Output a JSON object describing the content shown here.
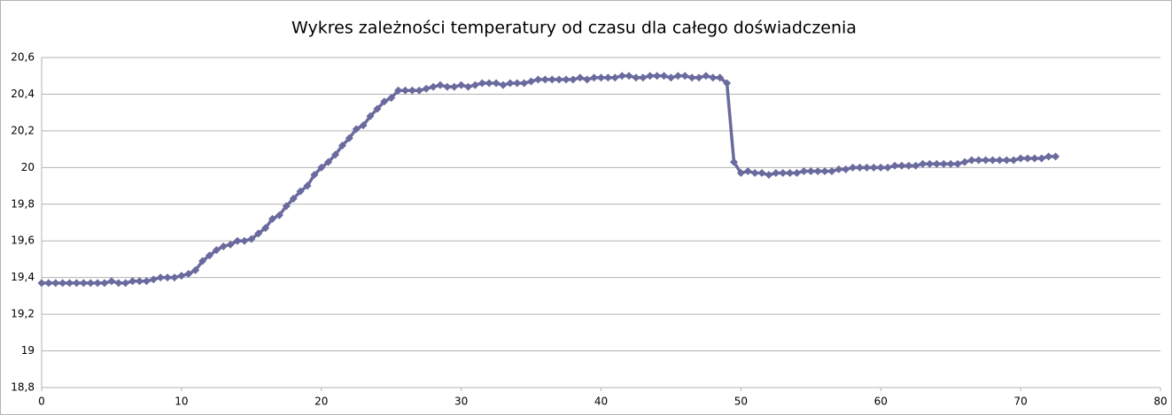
{
  "chart_data": {
    "type": "line",
    "title": "Wykres zależności temperatury od czasu dla całego doświadczenia",
    "x": [
      0,
      0.5,
      1,
      1.5,
      2,
      2.5,
      3,
      3.5,
      4,
      4.5,
      5,
      5.5,
      6,
      6.5,
      7,
      7.5,
      8,
      8.5,
      9,
      9.5,
      10,
      10.5,
      11,
      11.5,
      12,
      12.5,
      13,
      13.5,
      14,
      14.5,
      15,
      15.5,
      16,
      16.5,
      17,
      17.5,
      18,
      18.5,
      19,
      19.5,
      20,
      20.5,
      21,
      21.5,
      22,
      22.5,
      23,
      23.5,
      24,
      24.5,
      25,
      25.5,
      26,
      26.5,
      27,
      27.5,
      28,
      28.5,
      29,
      29.5,
      30,
      30.5,
      31,
      31.5,
      32,
      32.5,
      33,
      33.5,
      34,
      34.5,
      35,
      35.5,
      36,
      36.5,
      37,
      37.5,
      38,
      38.5,
      39,
      39.5,
      40,
      40.5,
      41,
      41.5,
      42,
      42.5,
      43,
      43.5,
      44,
      44.5,
      45,
      45.5,
      46,
      46.5,
      47,
      47.5,
      48,
      48.5,
      49,
      49.5,
      50,
      50.5,
      51,
      51.5,
      52,
      52.5,
      53,
      53.5,
      54,
      54.5,
      55,
      55.5,
      56,
      56.5,
      57,
      57.5,
      58,
      58.5,
      59,
      59.5,
      60,
      60.5,
      61,
      61.5,
      62,
      62.5,
      63,
      63.5,
      64,
      64.5,
      65,
      65.5,
      66,
      66.5,
      67,
      67.5,
      68,
      68.5,
      69,
      69.5,
      70,
      70.5,
      71,
      71.5,
      72,
      72.5
    ],
    "series": [
      {
        "color": "#6a6a9e",
        "values": [
          19.37,
          19.37,
          19.37,
          19.37,
          19.37,
          19.37,
          19.37,
          19.37,
          19.37,
          19.37,
          19.38,
          19.37,
          19.37,
          19.38,
          19.38,
          19.38,
          19.39,
          19.4,
          19.4,
          19.4,
          19.41,
          19.42,
          19.44,
          19.49,
          19.52,
          19.55,
          19.57,
          19.58,
          19.6,
          19.6,
          19.61,
          19.64,
          19.67,
          19.72,
          19.74,
          19.79,
          19.83,
          19.87,
          19.9,
          19.96,
          20,
          20.03,
          20.07,
          20.12,
          20.16,
          20.21,
          20.23,
          20.28,
          20.32,
          20.36,
          20.38,
          20.42,
          20.42,
          20.42,
          20.42,
          20.43,
          20.44,
          20.45,
          20.44,
          20.44,
          20.45,
          20.44,
          20.45,
          20.46,
          20.46,
          20.46,
          20.45,
          20.46,
          20.46,
          20.46,
          20.47,
          20.48,
          20.48,
          20.48,
          20.48,
          20.48,
          20.48,
          20.49,
          20.48,
          20.49,
          20.49,
          20.49,
          20.49,
          20.5,
          20.5,
          20.49,
          20.49,
          20.5,
          20.5,
          20.5,
          20.49,
          20.5,
          20.5,
          20.49,
          20.49,
          20.5,
          20.49,
          20.49,
          20.46,
          20.03,
          19.97,
          19.98,
          19.97,
          19.97,
          19.96,
          19.97,
          19.97,
          19.97,
          19.97,
          19.98,
          19.98,
          19.98,
          19.98,
          19.98,
          19.99,
          19.99,
          20,
          20,
          20,
          20,
          20,
          20,
          20.01,
          20.01,
          20.01,
          20.01,
          20.02,
          20.02,
          20.02,
          20.02,
          20.02,
          20.02,
          20.03,
          20.04,
          20.04,
          20.04,
          20.04,
          20.04,
          20.04,
          20.04,
          20.05,
          20.05,
          20.05,
          20.05,
          20.06,
          20.06
        ]
      }
    ],
    "xlim": [
      0,
      80
    ],
    "xticks": [
      0,
      10,
      20,
      30,
      40,
      50,
      60,
      70,
      80
    ],
    "ylim": [
      18.8,
      20.6
    ],
    "yticks": [
      {
        "value": 18.8,
        "label": "18,8"
      },
      19,
      {
        "value": 19.2,
        "label": "19,2"
      },
      {
        "value": 19.4,
        "label": "19,4"
      },
      {
        "value": 19.6,
        "label": "19,6"
      },
      {
        "value": 19.8,
        "label": "19,8"
      },
      20,
      {
        "value": 20.2,
        "label": "20,2"
      },
      {
        "value": 20.4,
        "label": "20,4"
      },
      {
        "value": 20.6,
        "label": "20,6"
      }
    ],
    "grid": true
  }
}
